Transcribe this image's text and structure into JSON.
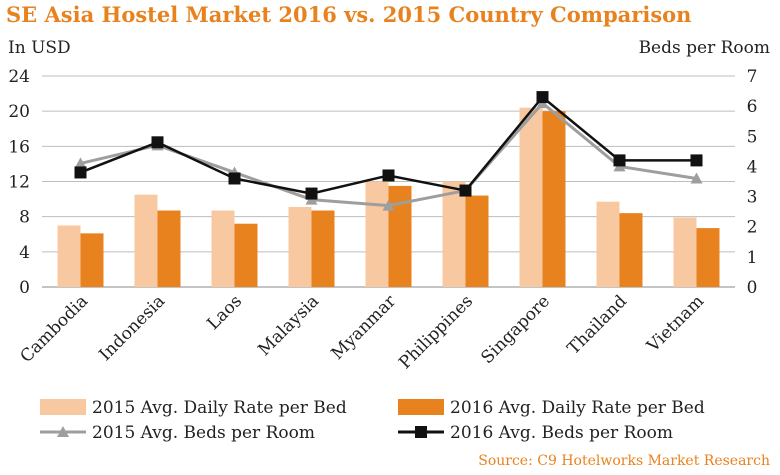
{
  "title": "SE Asia Hostel Market 2016 vs. 2015 Country Comparison",
  "source": "Source: C9 Hotelworks Market Research",
  "colors": {
    "title": "#e8821e",
    "bar_2015": "#f8c9a0",
    "bar_2016": "#e8821e",
    "line_2015": "#9e9e9e",
    "line_2016": "#111111",
    "grid": "#bdbdbd"
  },
  "chart_data": {
    "type": "bar",
    "title": "SE Asia Hostel Market 2016 vs. 2015 Country Comparison",
    "ylabel": "In USD",
    "y2label": "Beds per Room",
    "ylim": [
      0,
      24
    ],
    "y2lim": [
      0,
      7
    ],
    "yticks": [
      "0",
      "4",
      "8",
      "12",
      "16",
      "20",
      "24"
    ],
    "y2ticks": [
      "0",
      "1",
      "2",
      "3",
      "4",
      "5",
      "6",
      "7"
    ],
    "categories": [
      "Cambodia",
      "Indonesia",
      "Laos",
      "Malaysia",
      "Myanmar",
      "Philippines",
      "Singapore",
      "Thailand",
      "Vietnam"
    ],
    "series": [
      {
        "name": "2015 Avg. Daily Rate per Bed",
        "kind": "bar",
        "axis": "left",
        "values": [
          7.0,
          10.5,
          8.7,
          9.1,
          12.0,
          12.0,
          20.4,
          9.7,
          7.9
        ]
      },
      {
        "name": "2016 Avg. Daily Rate per Bed",
        "kind": "bar",
        "axis": "left",
        "values": [
          6.1,
          8.7,
          7.2,
          8.7,
          11.5,
          10.4,
          20.0,
          8.4,
          6.7
        ]
      },
      {
        "name": "2015 Avg. Beds per Room",
        "kind": "line",
        "marker": "triangle",
        "axis": "right",
        "values": [
          4.1,
          4.7,
          3.8,
          2.9,
          2.7,
          3.2,
          6.1,
          4.0,
          3.6
        ]
      },
      {
        "name": "2016 Avg. Beds per Room",
        "kind": "line",
        "marker": "square",
        "axis": "right",
        "values": [
          3.8,
          4.8,
          3.6,
          3.1,
          3.7,
          3.2,
          6.3,
          4.2,
          4.2
        ]
      }
    ],
    "grid": true,
    "legend_position": "bottom"
  }
}
